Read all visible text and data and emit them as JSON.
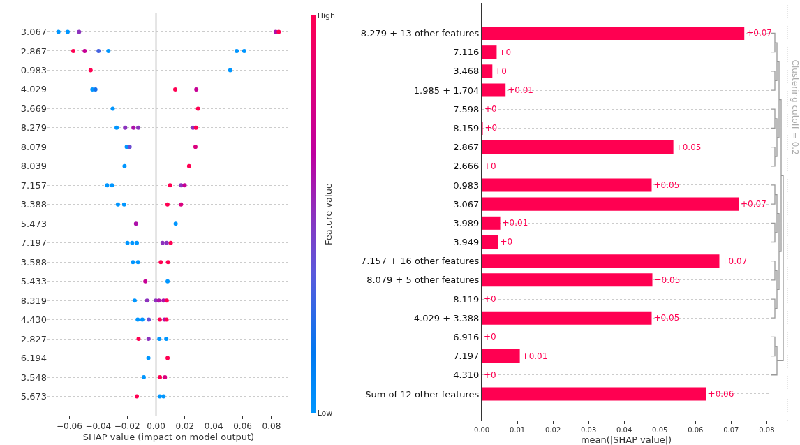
{
  "chart_data": [
    {
      "type": "scatter",
      "orientation": "horizontal",
      "xlabel": "SHAP value (impact on model output)",
      "clabel": "Feature value",
      "categories": [
        "3.067",
        "2.867",
        "0.983",
        "4.029",
        "3.669",
        "8.279",
        "8.079",
        "8.039",
        "7.157",
        "3.388",
        "5.473",
        "7.197",
        "3.588",
        "5.433",
        "8.319",
        "4.430",
        "2.827",
        "6.194",
        "3.548",
        "5.673"
      ],
      "series": [
        {
          "x": [
            "3.067",
            "3.067",
            "3.067",
            "3.067",
            "3.067",
            "2.867",
            "2.867",
            "2.867",
            "2.867",
            "2.867",
            "2.867",
            "0.983",
            "0.983",
            "4.029",
            "4.029",
            "4.029",
            "4.029",
            "3.669",
            "3.669",
            "8.279",
            "8.279",
            "8.279",
            "8.279",
            "8.279",
            "8.279",
            "8.079",
            "8.079",
            "8.079",
            "8.039",
            "8.039",
            "7.157",
            "7.157",
            "7.157",
            "7.157",
            "7.157",
            "3.388",
            "3.388",
            "3.388",
            "3.388",
            "5.473",
            "5.473",
            "7.197",
            "7.197",
            "7.197",
            "7.197",
            "7.197",
            "7.197",
            "3.588",
            "3.588",
            "3.588",
            "3.588",
            "5.433",
            "5.433",
            "8.319",
            "8.319",
            "8.319",
            "8.319",
            "8.319",
            "8.319",
            "4.430",
            "4.430",
            "4.430",
            "4.430",
            "4.430",
            "4.430",
            "2.827",
            "2.827",
            "2.827",
            "2.827",
            "6.194",
            "6.194",
            "3.548",
            "3.548",
            "3.548",
            "5.673",
            "5.673",
            "5.673"
          ],
          "values": [
            -0.0676,
            -0.0612,
            -0.0533,
            0.0829,
            0.085,
            -0.0573,
            -0.0494,
            -0.0398,
            -0.033,
            0.0559,
            0.0611,
            -0.0453,
            0.0514,
            -0.0441,
            -0.042,
            0.0133,
            0.0279,
            -0.03,
            0.0291,
            -0.0273,
            -0.0214,
            -0.0156,
            -0.0123,
            0.0256,
            0.0277,
            -0.0203,
            -0.0183,
            0.0273,
            -0.0218,
            0.0229,
            -0.0339,
            -0.0305,
            0.0097,
            0.0173,
            0.0198,
            -0.0264,
            -0.0221,
            0.0079,
            0.0173,
            -0.0139,
            0.0136,
            -0.0198,
            -0.0165,
            -0.0133,
            0.0045,
            0.0074,
            0.0102,
            -0.016,
            -0.0125,
            0.0033,
            0.0083,
            -0.0074,
            0.008,
            -0.0148,
            -0.0062,
            -0.0002,
            0.002,
            0.0052,
            0.0074,
            -0.0127,
            -0.0095,
            -0.005,
            0.0026,
            0.0059,
            0.0073,
            -0.0121,
            -0.0052,
            0.0023,
            0.0071,
            -0.0053,
            0.008,
            -0.0085,
            0.0027,
            0.0062,
            -0.0133,
            0.0026,
            0.0052
          ],
          "cvalues": [
            0,
            0,
            0.5,
            0.6,
            1,
            1,
            0.7,
            0.3,
            0,
            0,
            0,
            1,
            0,
            0,
            0.2,
            1,
            0.7,
            0,
            1,
            0,
            0.5,
            0.6,
            0.5,
            0.5,
            1,
            0,
            0.4,
            0.8,
            0,
            1,
            0,
            0,
            1,
            0.5,
            0.7,
            0,
            0,
            1,
            0.8,
            0.6,
            0,
            0,
            0,
            0,
            0.5,
            0.5,
            1,
            0,
            0,
            1,
            1,
            0.7,
            0,
            0,
            0.5,
            0.5,
            0.6,
            0.6,
            1,
            0,
            0,
            0.4,
            1,
            0.6,
            1,
            1,
            0.5,
            0,
            0,
            0,
            1,
            0,
            1,
            0.8,
            1,
            0,
            0
          ]
        }
      ],
      "xlim": [
        -0.0752,
        0.0926
      ],
      "xticks": [
        {
          "value": -0.06,
          "label": "−0.06"
        },
        {
          "value": -0.04,
          "label": "−0.04"
        },
        {
          "value": -0.02,
          "label": "−0.02"
        },
        {
          "value": 0,
          "label": "0.00"
        },
        {
          "value": 0.02,
          "label": "0.02"
        },
        {
          "value": 0.04,
          "label": "0.04"
        },
        {
          "value": 0.06,
          "label": "0.06"
        },
        {
          "value": 0.08,
          "label": "0.08"
        }
      ],
      "clim": [
        0,
        1
      ],
      "cticks": [
        {
          "value": 0,
          "label": "Low"
        },
        {
          "value": 1,
          "label": "High"
        }
      ],
      "ref_lines": [
        {
          "axis": "x",
          "value": 0,
          "color": "#999999"
        }
      ],
      "grid": "y",
      "marker": "circle"
    },
    {
      "type": "bar",
      "orientation": "horizontal",
      "xlabel": "mean(|SHAP value|)",
      "color": "#ff0051",
      "categories": [
        "8.279 + 13 other features",
        "7.116",
        "3.468",
        "1.985 + 1.704",
        "7.598",
        "8.159",
        "2.867",
        "2.666",
        "0.983",
        "3.067",
        "3.989",
        "3.949",
        "7.157 + 16 other features",
        "8.079 + 5 other features",
        "8.119",
        "4.029 + 3.388",
        "6.916",
        "7.197",
        "4.310",
        "Sum of 12 other features"
      ],
      "values": [
        0.0737,
        0.0042,
        0.003,
        0.0067,
        0.0002,
        0.0003,
        0.0538,
        0,
        0.0477,
        0.0721,
        0.0052,
        0.0046,
        0.0667,
        0.0479,
        0,
        0.0477,
        0,
        0.0107,
        0,
        0.063
      ],
      "value_labels": [
        "+0.07",
        "+0",
        "+0",
        "+0.01",
        "+0",
        "+0",
        "+0.05",
        "+0",
        "+0.05",
        "+0.07",
        "+0.01",
        "+0",
        "+0.07",
        "+0.05",
        "+0",
        "+0.05",
        "+0",
        "+0.01",
        "+0",
        "+0.06"
      ],
      "xlim": [
        0,
        0.0811
      ],
      "xticks": [
        {
          "value": 0,
          "label": "0.00"
        },
        {
          "value": 0.01,
          "label": "0.01"
        },
        {
          "value": 0.02,
          "label": "0.02"
        },
        {
          "value": 0.03,
          "label": "0.03"
        },
        {
          "value": 0.04,
          "label": "0.04"
        },
        {
          "value": 0.05,
          "label": "0.05"
        },
        {
          "value": 0.06,
          "label": "0.06"
        },
        {
          "value": 0.07,
          "label": "0.07"
        },
        {
          "value": 0.08,
          "label": "0.08"
        }
      ],
      "annotations": [
        "Clustering cutoff = 0.2"
      ],
      "grid": "y"
    }
  ]
}
